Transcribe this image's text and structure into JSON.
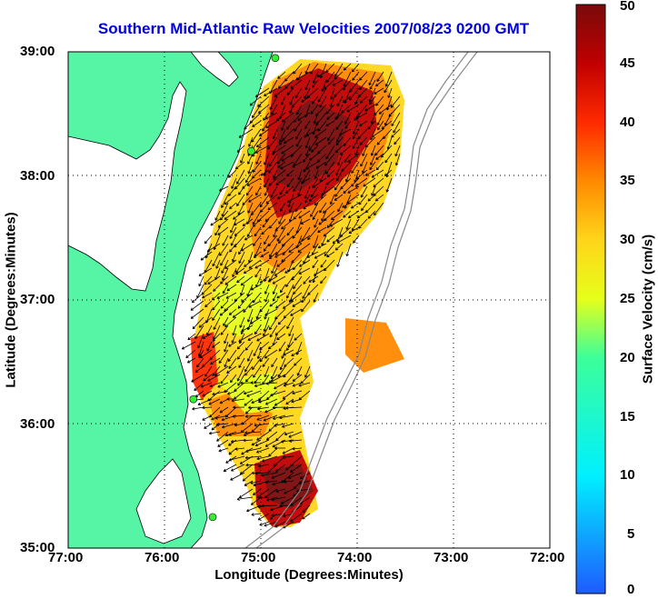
{
  "title": "Southern Mid-Atlantic Raw Velocities 2007/08/23 0200 GMT",
  "xlabel": "Longitude (Degrees:Minutes)",
  "ylabel": "Latitude (Degrees:Minutes)",
  "colorbar": {
    "label": "Surface Velocity (cm/s)",
    "ticks": [
      "50",
      "45",
      "40",
      "35",
      "30",
      "25",
      "20",
      "15",
      "10",
      "5",
      "0"
    ],
    "range": [
      0,
      50
    ]
  },
  "x_ticks": [
    "77:00",
    "76:00",
    "75:00",
    "74:00",
    "73:00",
    "72:00"
  ],
  "y_ticks": [
    "39:00",
    "38:00",
    "37:00",
    "36:00",
    "35:00"
  ],
  "colors": {
    "land": "#55f5a5",
    "water": "#ffffff",
    "title": "#0000e0",
    "station": "#33ee33"
  },
  "map_data": {
    "lon_range": [
      -77,
      -72
    ],
    "lat_range": [
      35,
      39
    ],
    "grid": true,
    "stations": [
      {
        "lon": -74.85,
        "lat": 38.95
      },
      {
        "lon": -75.1,
        "lat": 38.2
      },
      {
        "lon": -75.7,
        "lat": 36.2
      },
      {
        "lon": -75.5,
        "lat": 35.25
      }
    ]
  }
}
